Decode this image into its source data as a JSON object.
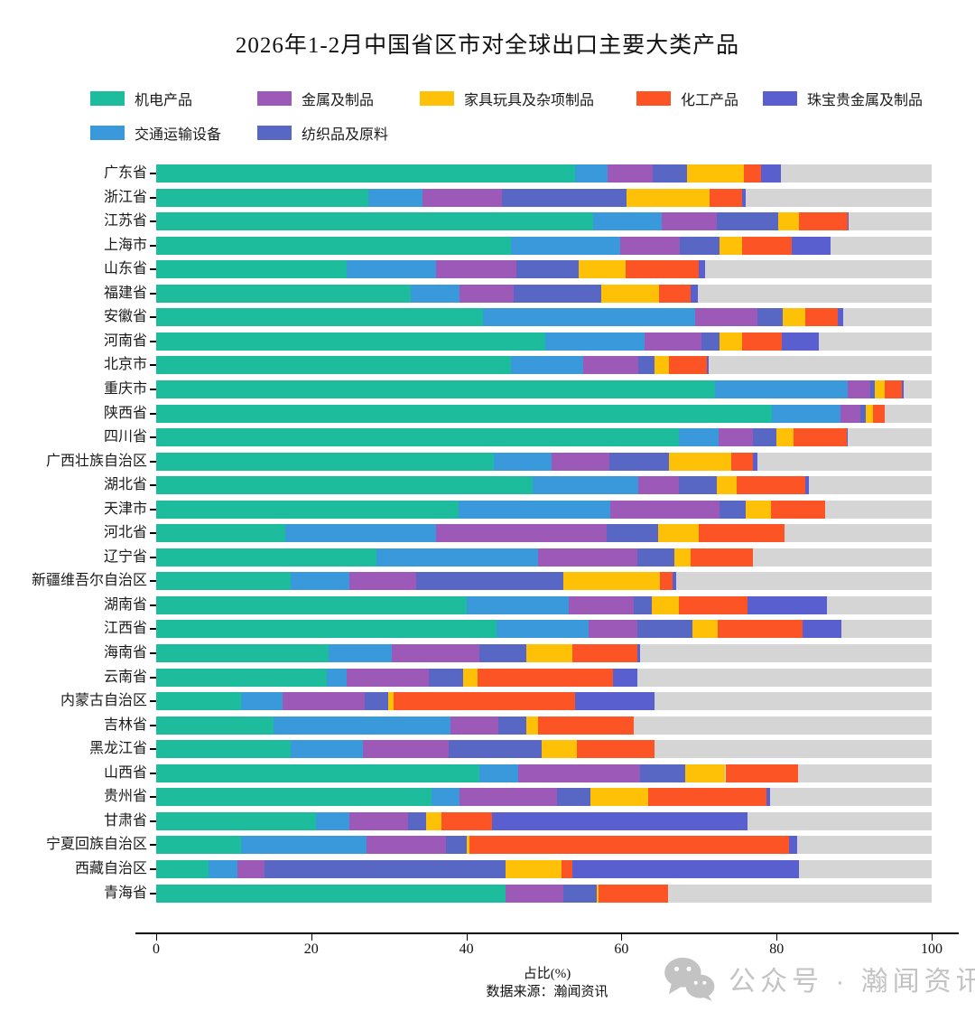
{
  "title": "2026年1-2月中国省区市对全球出口主要大类产品",
  "footer": {
    "xlabel": "占比(%)",
    "source": "数据来源：瀚闻资讯",
    "watermark": "公众号 · 瀚闻资讯"
  },
  "colors": {
    "track_background": "#d5d5d5",
    "axis": "#000000",
    "watermark_gray": "#c3c3c3"
  },
  "chart_data": {
    "type": "bar",
    "orientation": "horizontal",
    "stacked": true,
    "title": "2026年1-2月中国省区市对全球出口主要大类产品",
    "xlabel": "占比(%)",
    "ylabel": "",
    "xlim": [
      0,
      100
    ],
    "xticks": [
      0,
      20,
      40,
      60,
      80,
      100
    ],
    "grid": false,
    "legend_position": "top-left",
    "legend_order": [
      "机电产品",
      "金属及制品",
      "家具玩具及杂项制品",
      "化工产品",
      "珠宝贵金属及制品",
      "交通运输设备",
      "纺织品及原料"
    ],
    "series_colors": {
      "机电产品": "#1cbc9c",
      "交通运输设备": "#3999db",
      "金属及制品": "#9c59b8",
      "纺织品及原料": "#5867c3",
      "家具玩具及杂项制品": "#fec108",
      "化工产品": "#fc5424",
      "珠宝贵金属及制品": "#5a5fd0"
    },
    "categories": [
      "广东省",
      "浙江省",
      "江苏省",
      "上海市",
      "山东省",
      "福建省",
      "安徽省",
      "河南省",
      "北京市",
      "重庆市",
      "陕西省",
      "四川省",
      "广西壮族自治区",
      "湖北省",
      "天津市",
      "河北省",
      "辽宁省",
      "新疆维吾尔自治区",
      "湖南省",
      "江西省",
      "海南省",
      "云南省",
      "内蒙古自治区",
      "吉林省",
      "黑龙江省",
      "山西省",
      "贵州省",
      "甘肃省",
      "宁夏回族自治区",
      "西藏自治区",
      "青海省"
    ],
    "series": [
      {
        "name": "机电产品",
        "values": [
          54.0,
          27.3,
          56.3,
          45.8,
          24.6,
          32.8,
          42.2,
          50.2,
          45.8,
          72.1,
          79.4,
          67.4,
          43.5,
          48.6,
          39.0,
          16.7,
          28.4,
          17.4,
          40.0,
          43.9,
          22.2,
          22.0,
          10.9,
          15.1,
          17.4,
          41.7,
          35.5,
          20.6,
          11.0,
          6.8,
          45.0
        ]
      },
      {
        "name": "交通运输设备",
        "values": [
          4.2,
          7.0,
          8.9,
          14.0,
          11.5,
          6.3,
          27.3,
          12.8,
          9.3,
          17.1,
          8.9,
          5.1,
          7.5,
          13.6,
          19.5,
          19.4,
          20.9,
          7.5,
          13.2,
          11.9,
          8.2,
          2.6,
          5.4,
          22.9,
          9.3,
          5.0,
          3.6,
          4.3,
          16.1,
          3.7,
          0.0
        ]
      },
      {
        "name": "金属及制品",
        "values": [
          5.8,
          10.3,
          7.1,
          7.7,
          10.3,
          7.0,
          8.0,
          7.3,
          7.1,
          2.9,
          2.5,
          4.4,
          7.4,
          5.2,
          14.1,
          22.0,
          12.8,
          8.6,
          8.4,
          6.2,
          11.3,
          10.5,
          10.6,
          6.1,
          11.0,
          15.7,
          12.6,
          7.6,
          10.3,
          3.5,
          7.5
        ]
      },
      {
        "name": "纺织品及原料",
        "values": [
          4.5,
          16.1,
          7.9,
          5.2,
          8.1,
          11.3,
          3.3,
          2.4,
          2.1,
          0.6,
          0.7,
          3.1,
          7.7,
          4.9,
          3.4,
          6.6,
          4.7,
          19.0,
          2.3,
          7.1,
          6.0,
          4.5,
          3.0,
          3.6,
          12.0,
          5.8,
          4.3,
          2.3,
          2.7,
          31.0,
          4.3
        ]
      },
      {
        "name": "家具玩具及杂项制品",
        "values": [
          7.3,
          10.7,
          2.7,
          2.9,
          6.0,
          7.4,
          2.9,
          2.8,
          1.8,
          1.2,
          0.9,
          2.2,
          8.1,
          2.6,
          3.3,
          5.3,
          2.1,
          12.5,
          3.5,
          3.3,
          6.0,
          1.8,
          0.7,
          1.5,
          4.5,
          5.2,
          7.4,
          2.0,
          0.3,
          7.3,
          0.3
        ]
      },
      {
        "name": "化工产品",
        "values": [
          2.2,
          4.2,
          6.3,
          6.3,
          9.5,
          4.1,
          4.2,
          5.2,
          4.9,
          2.3,
          1.5,
          6.8,
          2.7,
          8.8,
          7.0,
          11.0,
          8.0,
          1.6,
          8.9,
          11.0,
          8.3,
          17.5,
          23.4,
          12.4,
          10.1,
          9.4,
          15.3,
          6.5,
          41.2,
          1.4,
          8.9
        ]
      },
      {
        "name": "珠宝贵金属及制品",
        "values": [
          2.6,
          0.4,
          0.1,
          5.1,
          0.8,
          0.9,
          0.7,
          4.8,
          0.3,
          0.2,
          0.0,
          0.2,
          0.6,
          0.5,
          0.0,
          0.0,
          0.0,
          0.5,
          10.2,
          5.0,
          0.4,
          3.1,
          10.3,
          0.0,
          0.0,
          0.0,
          0.5,
          33.0,
          1.0,
          29.2,
          0.0
        ]
      }
    ]
  }
}
